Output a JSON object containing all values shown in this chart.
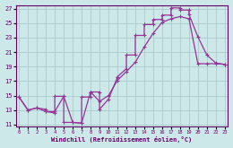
{
  "background_color": "#cce8e8",
  "grid_color": "#aacccc",
  "line_color": "#993399",
  "xlabel": "Windchill (Refroidissement éolien,°C)",
  "xlim_min": -0.3,
  "xlim_max": 23.3,
  "ylim_min": 10.8,
  "ylim_max": 27.5,
  "xticks": [
    0,
    1,
    2,
    3,
    4,
    5,
    6,
    7,
    8,
    9,
    10,
    11,
    12,
    13,
    14,
    15,
    16,
    17,
    18,
    19,
    20,
    21,
    22,
    23
  ],
  "yticks": [
    11,
    13,
    15,
    17,
    19,
    21,
    23,
    25,
    27
  ],
  "line1_x": [
    0,
    1,
    2,
    3,
    3,
    4,
    4,
    5,
    5,
    6,
    7,
    7,
    8,
    8,
    9,
    9,
    10,
    11,
    11,
    12,
    12,
    13,
    13,
    14,
    14,
    15,
    15,
    16,
    16,
    17,
    17,
    18,
    18,
    19,
    19,
    20,
    21,
    22,
    23
  ],
  "line1_y": [
    14.8,
    13.0,
    13.3,
    13.1,
    12.8,
    12.6,
    14.9,
    14.9,
    11.3,
    11.3,
    11.2,
    14.8,
    14.8,
    15.5,
    15.5,
    13.1,
    14.5,
    17.5,
    17.6,
    18.7,
    20.6,
    20.6,
    23.3,
    23.3,
    24.8,
    24.8,
    25.5,
    25.5,
    26.1,
    26.1,
    27.1,
    27.1,
    26.8,
    26.8,
    26.2,
    23.1,
    20.6,
    19.5,
    19.3
  ],
  "line2_x": [
    0,
    1,
    2,
    3,
    4,
    5,
    6,
    7,
    8,
    9,
    10,
    11,
    12,
    13,
    14,
    15,
    16,
    17,
    18,
    19,
    20,
    21,
    22,
    23
  ],
  "line2_y": [
    14.8,
    13.0,
    13.3,
    12.8,
    12.8,
    14.9,
    11.3,
    11.2,
    15.5,
    14.2,
    15.0,
    17.1,
    18.3,
    19.6,
    21.7,
    23.6,
    25.1,
    25.6,
    25.9,
    25.6,
    19.4,
    19.4,
    19.4,
    19.3
  ],
  "marker": "+",
  "markersize": 3,
  "linewidth": 0.9
}
